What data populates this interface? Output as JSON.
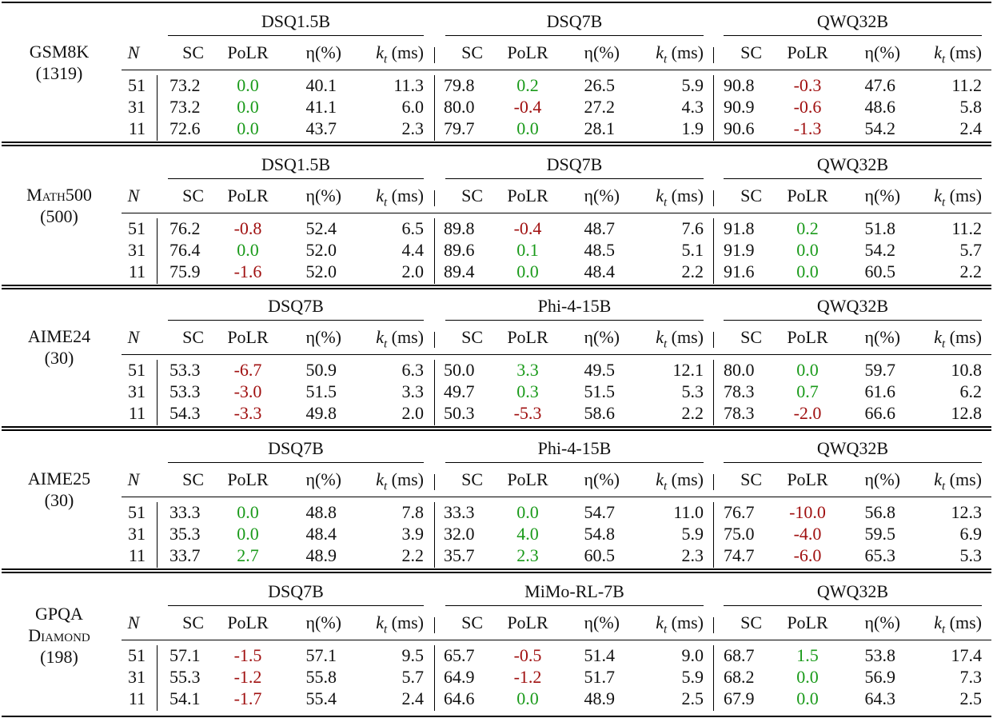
{
  "colors": {
    "positive": "#1a9a1a",
    "negative": "#a01010",
    "text": "#111111"
  },
  "header_labels": {
    "n": "N",
    "sc": "SC",
    "polr": "PoLR",
    "eta": "η(%)",
    "kt_k": "k",
    "kt_sub": "t",
    "kt_unit": "(ms)"
  },
  "sections": [
    {
      "dataset_lines": [
        "GSM8K",
        "(1319)"
      ],
      "models": [
        "DSQ1.5B",
        "DSQ7B",
        "QWQ32B"
      ],
      "rows": [
        {
          "n": "51",
          "cells": [
            [
              "73.2",
              "0.0",
              "40.1",
              "11.3"
            ],
            [
              "79.8",
              "0.2",
              "26.5",
              "5.9"
            ],
            [
              "90.8",
              "-0.3",
              "47.6",
              "11.2"
            ]
          ]
        },
        {
          "n": "31",
          "cells": [
            [
              "73.2",
              "0.0",
              "41.1",
              "6.0"
            ],
            [
              "80.0",
              "-0.4",
              "27.2",
              "4.3"
            ],
            [
              "90.9",
              "-0.6",
              "48.6",
              "5.8"
            ]
          ]
        },
        {
          "n": "11",
          "cells": [
            [
              "72.6",
              "0.0",
              "43.7",
              "2.3"
            ],
            [
              "79.7",
              "0.0",
              "28.1",
              "1.9"
            ],
            [
              "90.6",
              "-1.3",
              "54.2",
              "2.4"
            ]
          ]
        }
      ]
    },
    {
      "dataset_lines": [
        "Math500",
        "(500)"
      ],
      "models": [
        "DSQ1.5B",
        "DSQ7B",
        "QWQ32B"
      ],
      "rows": [
        {
          "n": "51",
          "cells": [
            [
              "76.2",
              "-0.8",
              "52.4",
              "6.5"
            ],
            [
              "89.8",
              "-0.4",
              "48.7",
              "7.6"
            ],
            [
              "91.8",
              "0.2",
              "51.8",
              "11.2"
            ]
          ]
        },
        {
          "n": "31",
          "cells": [
            [
              "76.4",
              "0.0",
              "52.0",
              "4.4"
            ],
            [
              "89.6",
              "0.1",
              "48.5",
              "5.1"
            ],
            [
              "91.9",
              "0.0",
              "54.2",
              "5.7"
            ]
          ]
        },
        {
          "n": "11",
          "cells": [
            [
              "75.9",
              "-1.6",
              "52.0",
              "2.0"
            ],
            [
              "89.4",
              "0.0",
              "48.4",
              "2.2"
            ],
            [
              "91.6",
              "0.0",
              "60.5",
              "2.2"
            ]
          ]
        }
      ]
    },
    {
      "dataset_lines": [
        "AIME24",
        "(30)"
      ],
      "models": [
        "DSQ7B",
        "Phi-4-15B",
        "QWQ32B"
      ],
      "rows": [
        {
          "n": "51",
          "cells": [
            [
              "53.3",
              "-6.7",
              "50.9",
              "6.3"
            ],
            [
              "50.0",
              "3.3",
              "49.5",
              "12.1"
            ],
            [
              "80.0",
              "0.0",
              "59.7",
              "10.8"
            ]
          ]
        },
        {
          "n": "31",
          "cells": [
            [
              "53.3",
              "-3.0",
              "51.5",
              "3.3"
            ],
            [
              "49.7",
              "0.3",
              "51.5",
              "5.3"
            ],
            [
              "78.3",
              "0.7",
              "61.6",
              "6.2"
            ]
          ]
        },
        {
          "n": "11",
          "cells": [
            [
              "54.3",
              "-3.3",
              "49.8",
              "2.0"
            ],
            [
              "50.3",
              "-5.3",
              "58.6",
              "2.2"
            ],
            [
              "78.3",
              "-2.0",
              "66.6",
              "12.8"
            ]
          ]
        }
      ]
    },
    {
      "dataset_lines": [
        "AIME25",
        "(30)"
      ],
      "models": [
        "DSQ7B",
        "Phi-4-15B",
        "QWQ32B"
      ],
      "rows": [
        {
          "n": "51",
          "cells": [
            [
              "33.3",
              "0.0",
              "48.8",
              "7.8"
            ],
            [
              "33.3",
              "0.0",
              "54.7",
              "11.0"
            ],
            [
              "76.7",
              "-10.0",
              "56.8",
              "12.3"
            ]
          ]
        },
        {
          "n": "31",
          "cells": [
            [
              "35.3",
              "0.0",
              "48.4",
              "3.9"
            ],
            [
              "32.0",
              "4.0",
              "54.8",
              "5.9"
            ],
            [
              "75.0",
              "-4.0",
              "59.5",
              "6.9"
            ]
          ]
        },
        {
          "n": "11",
          "cells": [
            [
              "33.7",
              "2.7",
              "48.9",
              "2.2"
            ],
            [
              "35.7",
              "2.3",
              "60.5",
              "2.3"
            ],
            [
              "74.7",
              "-6.0",
              "65.3",
              "5.3"
            ]
          ]
        }
      ]
    },
    {
      "dataset_lines": [
        "GPQA",
        "Diamond",
        "(198)"
      ],
      "models": [
        "DSQ7B",
        "MiMo-RL-7B",
        "QWQ32B"
      ],
      "rows": [
        {
          "n": "51",
          "cells": [
            [
              "57.1",
              "-1.5",
              "57.1",
              "9.5"
            ],
            [
              "65.7",
              "-0.5",
              "51.4",
              "9.0"
            ],
            [
              "68.7",
              "1.5",
              "53.8",
              "17.4"
            ]
          ]
        },
        {
          "n": "31",
          "cells": [
            [
              "55.3",
              "-1.2",
              "55.8",
              "5.7"
            ],
            [
              "64.9",
              "-1.2",
              "51.7",
              "5.9"
            ],
            [
              "68.2",
              "0.0",
              "56.9",
              "7.3"
            ]
          ]
        },
        {
          "n": "11",
          "cells": [
            [
              "54.1",
              "-1.7",
              "55.4",
              "2.4"
            ],
            [
              "64.6",
              "0.0",
              "48.9",
              "2.5"
            ],
            [
              "67.9",
              "0.0",
              "64.3",
              "2.5"
            ]
          ]
        }
      ]
    }
  ]
}
